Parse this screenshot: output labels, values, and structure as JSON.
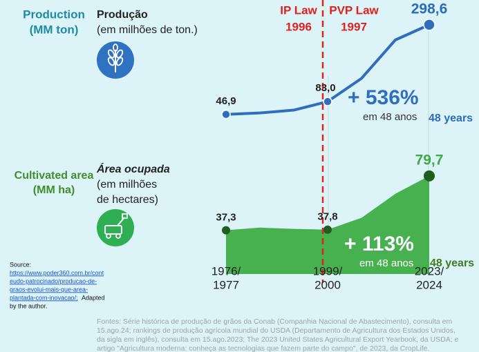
{
  "labels": {
    "production_en": [
      "Production",
      "(MM ton)"
    ],
    "production_pt": [
      "Produção",
      "(em milhões de ton.)"
    ],
    "area_en": [
      "Cultivated area",
      "(MM ha)"
    ],
    "area_pt": [
      "Área ocupada",
      "(em milhões",
      "de hectares)"
    ],
    "ip_law": [
      "IP Law",
      "1996"
    ],
    "pvp_law": [
      "PVP Law",
      "1997"
    ],
    "production_growth": "+ 536%",
    "production_growth_pt": "em 48 anos",
    "production_years": "48 years",
    "area_growth": "+ 113%",
    "area_growth_pt": "em 48 anos",
    "area_years": "48 years",
    "source": [
      "Source:",
      "https://www.poder360.com.br/cont",
      "eudo-patrocinado/producao-de-",
      "graos-evolui-mais-que-area-",
      "plantada-com-inovacao/;",
      "Adapted",
      "by the author."
    ],
    "footnote": [
      "Fontes: Série histórica de produção de grãos da Conab (Companhia Nacional de Abastecimento), consulta em",
      "15.ago.24; rankings de produção agrícola mundial do USDA (Departamento de Agricultura dos Estados Unidos,",
      "da sigla em inglês), consulta em 15.ago.2023; The 2023 United States Agricultural Export Yearbook, da USDA;  e",
      "artigo \"Agricultura moderna: conheça as tecnologias que fazem parte do campo\", de 2023, da CropLife."
    ]
  },
  "chart_data": [
    {
      "type": "line",
      "name": "production",
      "values": [
        46.9,
        51,
        59,
        83.0,
        148,
        256,
        298.6
      ],
      "value_labels": [
        "46,9",
        null,
        null,
        "83,0",
        null,
        null,
        "298,6"
      ],
      "color": "#2f6ebf",
      "ylim": [
        0,
        310
      ]
    },
    {
      "type": "area",
      "name": "cultivated area",
      "categories": [
        [
          "1976/",
          "1977"
        ],
        null,
        null,
        [
          "1999/",
          "2000"
        ],
        null,
        null,
        [
          "2023/",
          "2024"
        ]
      ],
      "values": [
        37.3,
        39.4,
        38.4,
        37.8,
        47,
        65.8,
        79.7
      ],
      "value_labels": [
        "37,3",
        null,
        null,
        "37,8",
        null,
        null,
        "79,7"
      ],
      "color": "#47b04f",
      "ylim": [
        0,
        85
      ]
    }
  ]
}
